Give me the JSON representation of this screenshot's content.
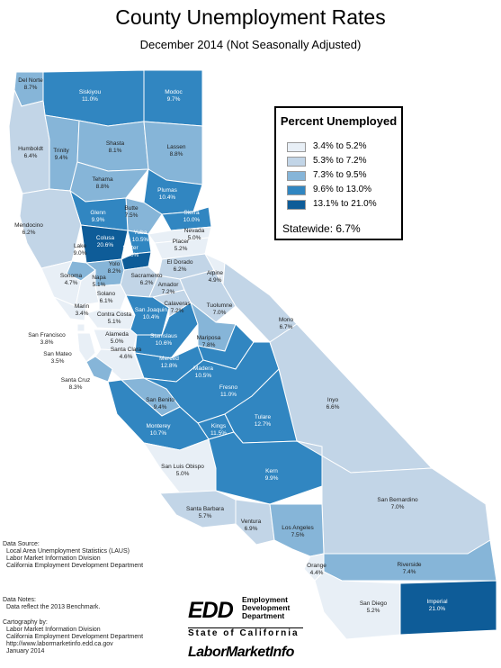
{
  "title": "County Unemployment Rates",
  "subtitle": "December 2014 (Not Seasonally Adjusted)",
  "legend": {
    "title": "Percent Unemployed",
    "items": [
      {
        "label": "3.4% to 5.2%",
        "color": "#e8eff6"
      },
      {
        "label": "5.3% to 7.2%",
        "color": "#c2d5e7"
      },
      {
        "label": "7.3% to 9.5%",
        "color": "#86b5d8"
      },
      {
        "label": "9.6% to 13.0%",
        "color": "#3186c1"
      },
      {
        "label": "13.1% to 21.0%",
        "color": "#0e5c98"
      }
    ],
    "statewide": "Statewide: 6.7%"
  },
  "counties": [
    {
      "name": "Del Norte",
      "rate": "8.7%"
    },
    {
      "name": "Siskiyou",
      "rate": "11.0%"
    },
    {
      "name": "Modoc",
      "rate": "9.7%"
    },
    {
      "name": "Humboldt",
      "rate": "6.4%"
    },
    {
      "name": "Trinity",
      "rate": "9.4%"
    },
    {
      "name": "Shasta",
      "rate": "8.1%"
    },
    {
      "name": "Lassen",
      "rate": "8.8%"
    },
    {
      "name": "Tehama",
      "rate": "8.8%"
    },
    {
      "name": "Plumas",
      "rate": "10.4%"
    },
    {
      "name": "Glenn",
      "rate": "9.9%"
    },
    {
      "name": "Butte",
      "rate": "7.5%"
    },
    {
      "name": "Sierra",
      "rate": "10.0%"
    },
    {
      "name": "Mendocino",
      "rate": "6.2%"
    },
    {
      "name": "Colusa",
      "rate": "20.6%"
    },
    {
      "name": "Yuba",
      "rate": "10.5%"
    },
    {
      "name": "Nevada",
      "rate": "5.0%"
    },
    {
      "name": "Sutter",
      "rate": "13.0%"
    },
    {
      "name": "Lake",
      "rate": "9.0%"
    },
    {
      "name": "Placer",
      "rate": "5.2%"
    },
    {
      "name": "Yolo",
      "rate": "8.2%"
    },
    {
      "name": "El Dorado",
      "rate": "6.2%"
    },
    {
      "name": "Sacramento",
      "rate": "6.2%"
    },
    {
      "name": "Alpine",
      "rate": "4.9%"
    },
    {
      "name": "Sonoma",
      "rate": "4.7%"
    },
    {
      "name": "Napa",
      "rate": "5.1%"
    },
    {
      "name": "Amador",
      "rate": "7.2%"
    },
    {
      "name": "Solano",
      "rate": "6.1%"
    },
    {
      "name": "Marin",
      "rate": "3.4%"
    },
    {
      "name": "Contra Costa",
      "rate": "5.1%"
    },
    {
      "name": "San Joaquin",
      "rate": "10.4%"
    },
    {
      "name": "Calaveras",
      "rate": "7.2%"
    },
    {
      "name": "Tuolumne",
      "rate": "7.0%"
    },
    {
      "name": "Mono",
      "rate": "6.7%"
    },
    {
      "name": "San Francisco",
      "rate": "3.8%"
    },
    {
      "name": "Alameda",
      "rate": "5.0%"
    },
    {
      "name": "Stanislaus",
      "rate": "10.6%"
    },
    {
      "name": "Mariposa",
      "rate": "7.8%"
    },
    {
      "name": "San Mateo",
      "rate": "3.5%"
    },
    {
      "name": "Santa Clara",
      "rate": "4.6%"
    },
    {
      "name": "Merced",
      "rate": "12.8%"
    },
    {
      "name": "Madera",
      "rate": "10.5%"
    },
    {
      "name": "Santa Cruz",
      "rate": "8.3%"
    },
    {
      "name": "Fresno",
      "rate": "11.0%"
    },
    {
      "name": "Inyo",
      "rate": "6.6%"
    },
    {
      "name": "San Benito",
      "rate": "9.4%"
    },
    {
      "name": "Kings",
      "rate": "11.5%"
    },
    {
      "name": "Tulare",
      "rate": "12.7%"
    },
    {
      "name": "Monterey",
      "rate": "10.7%"
    },
    {
      "name": "San Luis Obispo",
      "rate": "5.0%"
    },
    {
      "name": "Kern",
      "rate": "9.9%"
    },
    {
      "name": "San Bernardino",
      "rate": "7.0%"
    },
    {
      "name": "Santa Barbara",
      "rate": "5.7%"
    },
    {
      "name": "Ventura",
      "rate": "6.9%"
    },
    {
      "name": "Los Angeles",
      "rate": "7.5%"
    },
    {
      "name": "Riverside",
      "rate": "7.4%"
    },
    {
      "name": "Orange",
      "rate": "4.4%"
    },
    {
      "name": "San Diego",
      "rate": "5.2%"
    },
    {
      "name": "Imperial",
      "rate": "21.0%"
    }
  ],
  "notes": {
    "source_heading": "Data Source:",
    "source_lines": [
      "Local Area Unemployment Statistics (LAUS)",
      "Labor Market Information Division",
      "California Employment Development Department"
    ],
    "data_notes_heading": "Data Notes:",
    "data_notes_lines": [
      "Data reflect the 2013 Benchmark."
    ],
    "cartography_heading": "Cartography by:",
    "cartography_lines": [
      "Labor Market Information Division",
      "California Employment Development Department",
      "http://www.labormarketinfo.edd.ca.gov",
      "January 2014"
    ]
  },
  "logos": {
    "edd_mark": "EDD",
    "edd_lines": [
      "Employment",
      "Development",
      "Department"
    ],
    "edd_state": "State of California",
    "lmi": "LaborMarketInfo"
  }
}
